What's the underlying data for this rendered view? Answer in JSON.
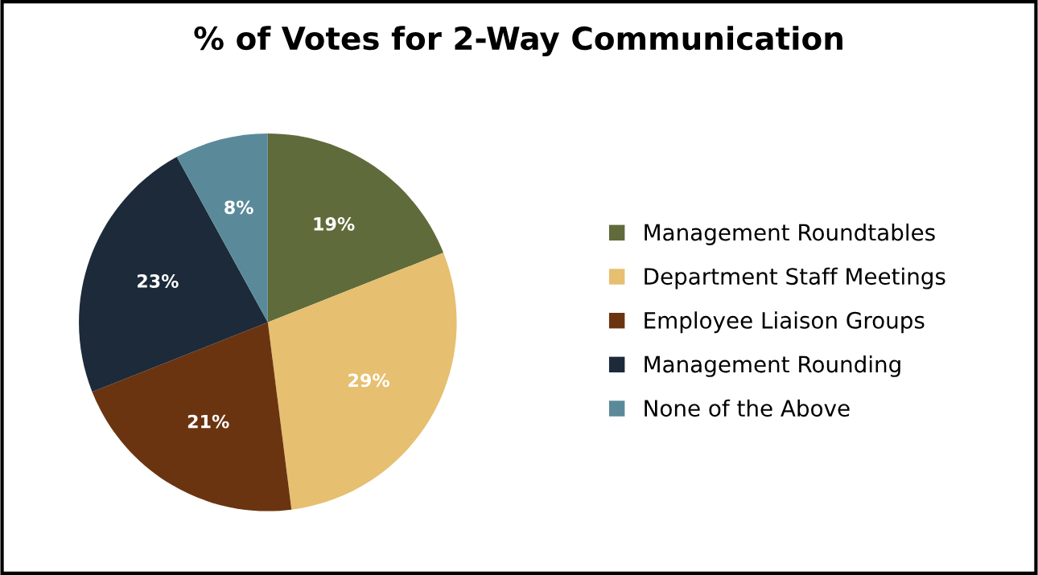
{
  "chart_data": {
    "type": "pie",
    "title": "% of Votes for 2-Way Communication",
    "categories": [
      "Management Roundtables",
      "Department Staff Meetings",
      "Employee Liaison Groups",
      "Management Rounding",
      "None of the Above"
    ],
    "values": [
      19,
      29,
      21,
      23,
      8
    ],
    "colors": [
      "#5f6b3a",
      "#e6bf70",
      "#6b3410",
      "#1c2a3a",
      "#5a8a9a"
    ],
    "value_labels": [
      "19%",
      "29%",
      "21%",
      "23%",
      "8%"
    ],
    "legend": "right"
  }
}
